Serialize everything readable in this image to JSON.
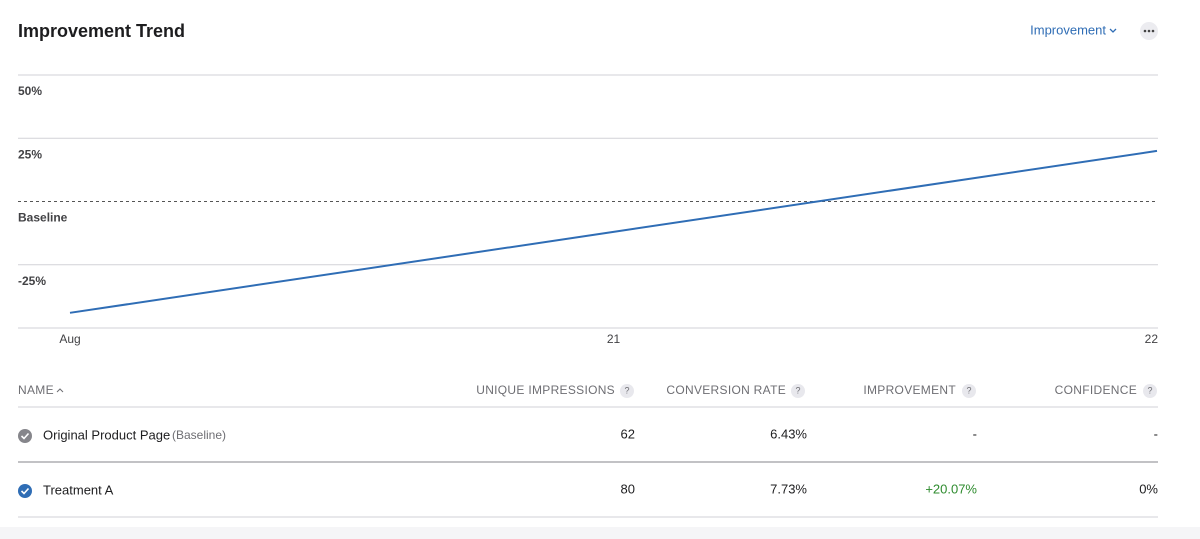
{
  "header": {
    "title": "Improvement Trend",
    "metric_menu": "Improvement"
  },
  "chart_data": {
    "type": "line",
    "categories": [
      "Aug",
      "21",
      "22"
    ],
    "series": [
      {
        "name": "Treatment A",
        "color": "#2f6db5",
        "values": [
          -44,
          -12,
          20
        ]
      }
    ],
    "ylim": [
      -50,
      50
    ],
    "yticks": [
      {
        "value": 50,
        "label": "50%"
      },
      {
        "value": 25,
        "label": "25%"
      },
      {
        "value": 0,
        "label": "Baseline"
      },
      {
        "value": -25,
        "label": "-25%"
      }
    ],
    "grid": true
  },
  "table": {
    "help_icon": "?",
    "columns": [
      "NAME",
      "UNIQUE IMPRESSIONS",
      "CONVERSION RATE",
      "IMPROVEMENT",
      "CONFIDENCE"
    ],
    "rows": [
      {
        "name": "Original Product Page",
        "tag": "(Baseline)",
        "cells": [
          "62",
          "6.43%",
          "-",
          "-"
        ]
      },
      {
        "name": "Treatment A",
        "cells": [
          "80",
          "7.73%",
          "+20.07%",
          "0%"
        ]
      }
    ]
  }
}
